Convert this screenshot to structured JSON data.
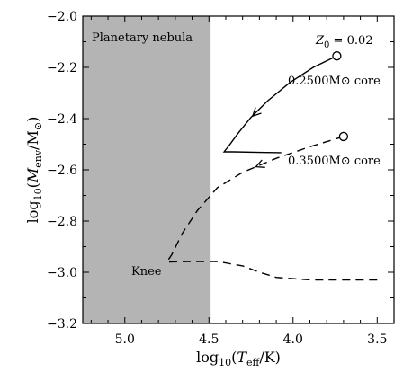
{
  "chart_data": {
    "type": "line",
    "xlabel": "log₁₀(Tₑₒₒ/K)",
    "xlabel_parts": {
      "pre": "log",
      "sub": "10",
      "open": "(",
      "var": "T",
      "var_sub": "eff",
      "post": "/K)"
    },
    "ylabel_parts": {
      "pre": "log",
      "sub": "10",
      "open": "(",
      "var": "M",
      "var_sub": "env",
      "post": "/M",
      "post_sub": "⊙",
      "close": ")"
    },
    "xlim": [
      5.25,
      3.4
    ],
    "ylim": [
      -3.2,
      -2.0
    ],
    "x_reversed": true,
    "xticks": [
      5.0,
      4.5,
      4.0,
      3.5
    ],
    "xtick_labels": [
      "5.0",
      "4.5",
      "4.0",
      "3.5"
    ],
    "yticks": [
      -2.0,
      -2.2,
      -2.4,
      -2.6,
      -2.8,
      -3.0,
      -3.2
    ],
    "ytick_labels": [
      "−2.0",
      "−2.2",
      "−2.4",
      "−2.6",
      "−2.8",
      "−3.0",
      "−3.2"
    ],
    "grid": false,
    "shaded_region": {
      "x_from": 5.25,
      "x_to": 4.49,
      "label": "Planetary nebula",
      "color": "#b4b4b4"
    },
    "annotations": {
      "z0": "Z₀ = 0.02",
      "core1": "0.2500M⊙ core",
      "core2": "0.3500M⊙ core",
      "knee": "Knee"
    },
    "series": [
      {
        "style": "solid",
        "points": [
          [
            3.74,
            -2.155
          ],
          [
            3.88,
            -2.2
          ],
          [
            4.02,
            -2.26
          ],
          [
            4.15,
            -2.33
          ],
          [
            4.25,
            -2.395
          ],
          [
            4.33,
            -2.46
          ],
          [
            4.38,
            -2.505
          ],
          [
            4.41,
            -2.53
          ],
          [
            4.35,
            -2.53
          ],
          [
            4.2,
            -2.532
          ],
          [
            4.07,
            -2.533
          ]
        ],
        "arrow_at": [
          4.24,
          -2.39
        ],
        "start_marker": [
          3.74,
          -2.155
        ]
      },
      {
        "style": "dashed",
        "points": [
          [
            3.7,
            -2.47
          ],
          [
            3.9,
            -2.51
          ],
          [
            4.1,
            -2.555
          ],
          [
            4.3,
            -2.61
          ],
          [
            4.45,
            -2.67
          ],
          [
            4.57,
            -2.76
          ],
          [
            4.66,
            -2.85
          ],
          [
            4.72,
            -2.93
          ],
          [
            4.75,
            -2.96
          ],
          [
            4.6,
            -2.958
          ],
          [
            4.45,
            -2.958
          ],
          [
            4.3,
            -2.975
          ],
          [
            4.2,
            -3.0
          ],
          [
            4.1,
            -3.02
          ],
          [
            3.9,
            -3.03
          ],
          [
            3.7,
            -3.03
          ],
          [
            3.5,
            -3.03
          ]
        ],
        "arrow_at": [
          4.22,
          -2.588
        ],
        "start_marker": [
          3.7,
          -2.47
        ]
      }
    ]
  }
}
